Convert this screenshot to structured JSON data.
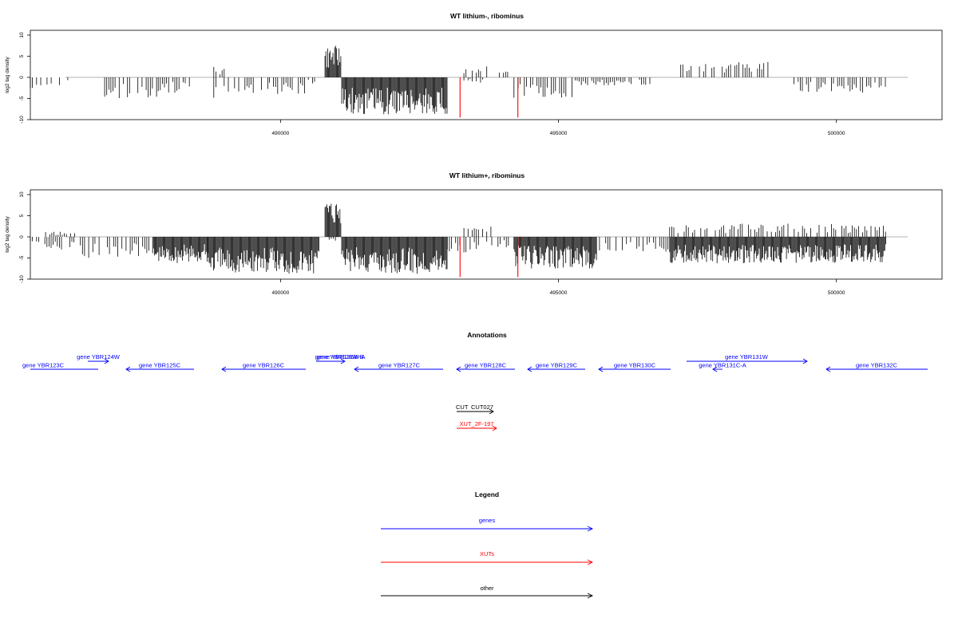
{
  "chart_data": [
    {
      "type": "bar",
      "title": "WT lithium-, ribominus",
      "ylabel": "log2 tag density",
      "xlabel": "",
      "xlim": [
        485500,
        501900
      ],
      "ylim": [
        -10,
        10
      ],
      "yticks": [
        10,
        5,
        0,
        -5,
        -10
      ],
      "xticks": [
        490000,
        495000,
        500000
      ],
      "grid": false,
      "series": [
        {
          "color": "#000000",
          "segments": [
            {
              "x0": 485500,
              "x1": 485700,
              "level": -3
            },
            {
              "x0": 485800,
              "x1": 486200,
              "level": -1.5
            },
            {
              "x0": 486800,
              "x1": 487800,
              "level": -4
            },
            {
              "x0": 487800,
              "x1": 488400,
              "level": -3
            },
            {
              "x0": 488800,
              "x1": 489000,
              "level": 2
            },
            {
              "x0": 488800,
              "x1": 489800,
              "level": -4
            },
            {
              "x0": 489800,
              "x1": 490500,
              "level": -3.5
            },
            {
              "x0": 490500,
              "x1": 490700,
              "level": -1.5
            },
            {
              "x0": 490800,
              "x1": 491100,
              "level": 6
            },
            {
              "x0": 491100,
              "x1": 493000,
              "level": -7
            },
            {
              "x0": 493300,
              "x1": 493800,
              "level": 2.5
            },
            {
              "x0": 493300,
              "x1": 493700,
              "level": -1
            },
            {
              "x0": 493900,
              "x1": 494100,
              "level": 1.5
            },
            {
              "x0": 494200,
              "x1": 495300,
              "level": -4
            },
            {
              "x0": 495300,
              "x1": 496700,
              "level": -1.5
            },
            {
              "x0": 497200,
              "x1": 498800,
              "level": 3
            },
            {
              "x0": 499200,
              "x1": 500900,
              "level": -3
            }
          ]
        },
        {
          "color": "#ff0000",
          "points": [
            [
              493230,
              -9.5
            ],
            [
              494270,
              -9.5
            ]
          ]
        }
      ]
    },
    {
      "type": "bar",
      "title": "WT lithium+, ribominus",
      "ylabel": "log2 tag density",
      "xlabel": "",
      "xlim": [
        485500,
        501900
      ],
      "ylim": [
        -10,
        10
      ],
      "yticks": [
        10,
        5,
        0,
        -5,
        -10
      ],
      "xticks": [
        490000,
        495000,
        500000
      ],
      "grid": false,
      "series": [
        {
          "color": "#000000",
          "segments": [
            {
              "x0": 485500,
              "x1": 486300,
              "level": -2.5
            },
            {
              "x0": 485700,
              "x1": 486300,
              "level": 1
            },
            {
              "x0": 486400,
              "x1": 487700,
              "level": -4
            },
            {
              "x0": 487700,
              "x1": 488700,
              "level": -5
            },
            {
              "x0": 488700,
              "x1": 490700,
              "level": -7
            },
            {
              "x0": 490800,
              "x1": 491100,
              "level": 7
            },
            {
              "x0": 490800,
              "x1": 491000,
              "level": -1
            },
            {
              "x0": 491100,
              "x1": 493000,
              "level": -7
            },
            {
              "x0": 493000,
              "x1": 493800,
              "level": -3
            },
            {
              "x0": 493300,
              "x1": 493800,
              "level": 2
            },
            {
              "x0": 493800,
              "x1": 494200,
              "level": -2
            },
            {
              "x0": 494200,
              "x1": 495700,
              "level": -6
            },
            {
              "x0": 495700,
              "x1": 497000,
              "level": -3
            },
            {
              "x0": 497000,
              "x1": 500900,
              "level": 2.5
            },
            {
              "x0": 497000,
              "x1": 500900,
              "level": -5
            }
          ]
        },
        {
          "color": "#ff0000",
          "points": [
            [
              493230,
              -9.5
            ],
            [
              494270,
              -9.5
            ]
          ]
        }
      ]
    }
  ],
  "annotations": {
    "title": "Annotations",
    "genes": [
      {
        "label": "gene YBR123C",
        "strand": "-"
      },
      {
        "label": "gene YBR124W",
        "strand": "+"
      },
      {
        "label": "gene YBR125C",
        "strand": "-"
      },
      {
        "label": "gene YBR126C",
        "strand": "-"
      },
      {
        "label": "gene YBR126W-B",
        "strand": "+"
      },
      {
        "label": "gene YBR126W-A",
        "strand": "+"
      },
      {
        "label": "gene YBR127C",
        "strand": "-"
      },
      {
        "label": "gene YBR128C",
        "strand": "-"
      },
      {
        "label": "gene YBR129C",
        "strand": "-"
      },
      {
        "label": "gene YBR130C",
        "strand": "-"
      },
      {
        "label": "gene YBR131W",
        "strand": "+"
      },
      {
        "label": "gene YBR131C-A",
        "strand": "-"
      },
      {
        "label": "gene YBR132C",
        "strand": "-"
      }
    ],
    "other": [
      {
        "label": "CUT",
        "strand": "+"
      },
      {
        "label": "CUT027",
        "strand": "+"
      }
    ],
    "xuts": [
      {
        "label": "XUT_2F-197",
        "strand": "+"
      }
    ]
  },
  "legend": {
    "title": "Legend",
    "items": [
      {
        "label": "genes",
        "color": "#0000ff"
      },
      {
        "label": "XUTs",
        "color": "#ff0000"
      },
      {
        "label": "other",
        "color": "#000000"
      }
    ]
  }
}
